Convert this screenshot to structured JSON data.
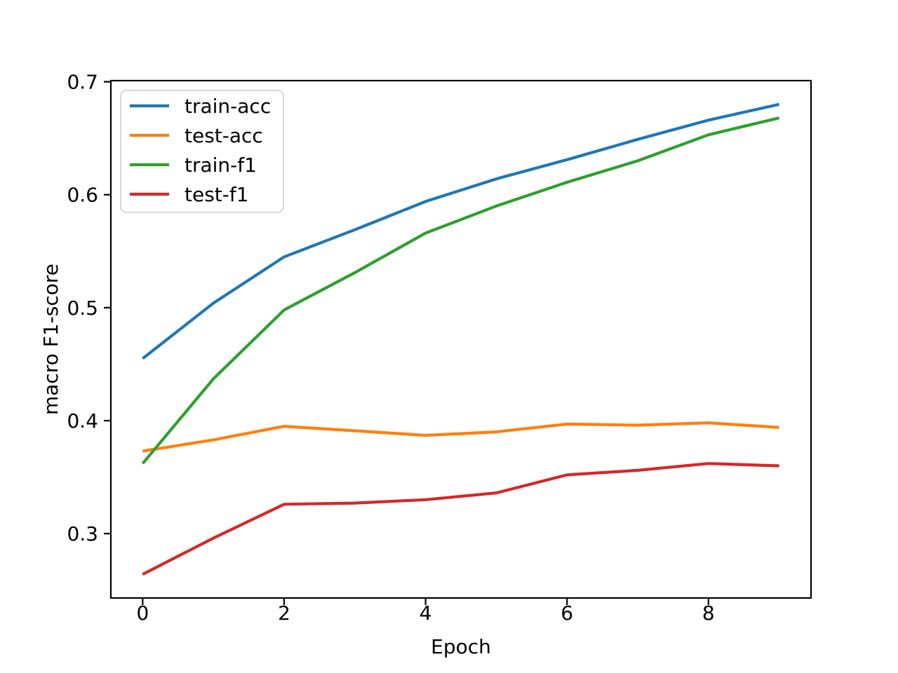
{
  "chart_data": {
    "type": "line",
    "title": "",
    "xlabel": "Epoch",
    "ylabel": "macro F1-score",
    "x": [
      0,
      1,
      2,
      3,
      4,
      5,
      6,
      7,
      8,
      9
    ],
    "series": [
      {
        "name": "train-acc",
        "color": "#1f77b4",
        "values": [
          0.455,
          0.504,
          0.545,
          0.569,
          0.594,
          0.614,
          0.631,
          0.649,
          0.666,
          0.68
        ]
      },
      {
        "name": "test-acc",
        "color": "#ff7f0e",
        "values": [
          0.373,
          0.383,
          0.395,
          0.391,
          0.387,
          0.39,
          0.397,
          0.396,
          0.398,
          0.394
        ]
      },
      {
        "name": "train-f1",
        "color": "#2ca02c",
        "values": [
          0.362,
          0.437,
          0.498,
          0.531,
          0.566,
          0.59,
          0.611,
          0.63,
          0.653,
          0.668
        ]
      },
      {
        "name": "test-f1",
        "color": "#d62728",
        "values": [
          0.264,
          0.296,
          0.326,
          0.327,
          0.33,
          0.336,
          0.352,
          0.356,
          0.362,
          0.36
        ]
      }
    ],
    "xlim": [
      -0.45,
      9.45
    ],
    "ylim": [
      0.243,
      0.701
    ],
    "xticks": [
      0,
      2,
      4,
      6,
      8
    ],
    "xtick_labels": [
      "0",
      "2",
      "4",
      "6",
      "8"
    ],
    "yticks": [
      0.3,
      0.4,
      0.5,
      0.6,
      0.7
    ],
    "ytick_labels": [
      "0.3",
      "0.4",
      "0.5",
      "0.6",
      "0.7"
    ],
    "grid": false,
    "legend_position": "upper-left",
    "legend_entries": [
      "train-acc",
      "test-acc",
      "train-f1",
      "test-f1"
    ],
    "background": "#ffffff",
    "axis_color": "#000000"
  }
}
